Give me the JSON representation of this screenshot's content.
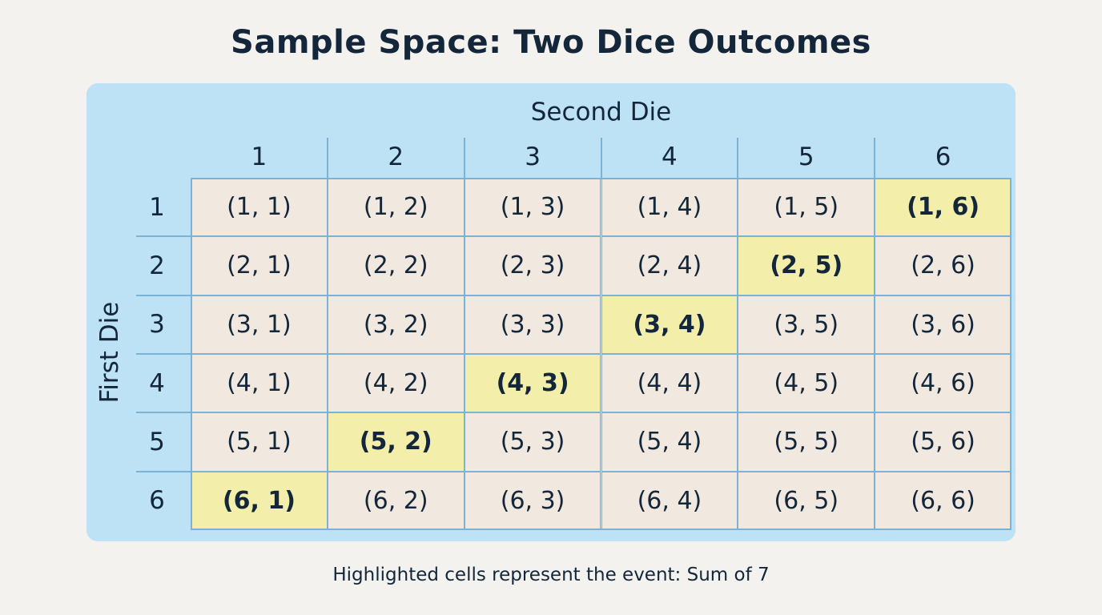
{
  "title": "Sample Space: Two Dice Outcomes",
  "column_axis_label": "Second Die",
  "row_axis_label": "First Die",
  "column_headers": [
    "1",
    "2",
    "3",
    "4",
    "5",
    "6"
  ],
  "row_headers": [
    "1",
    "2",
    "3",
    "4",
    "5",
    "6"
  ],
  "cells": [
    [
      {
        "text": "(1, 1)",
        "highlighted": false
      },
      {
        "text": "(1, 2)",
        "highlighted": false
      },
      {
        "text": "(1, 3)",
        "highlighted": false
      },
      {
        "text": "(1, 4)",
        "highlighted": false
      },
      {
        "text": "(1, 5)",
        "highlighted": false
      },
      {
        "text": "(1, 6)",
        "highlighted": true
      }
    ],
    [
      {
        "text": "(2, 1)",
        "highlighted": false
      },
      {
        "text": "(2, 2)",
        "highlighted": false
      },
      {
        "text": "(2, 3)",
        "highlighted": false
      },
      {
        "text": "(2, 4)",
        "highlighted": false
      },
      {
        "text": "(2, 5)",
        "highlighted": true
      },
      {
        "text": "(2, 6)",
        "highlighted": false
      }
    ],
    [
      {
        "text": "(3, 1)",
        "highlighted": false
      },
      {
        "text": "(3, 2)",
        "highlighted": false
      },
      {
        "text": "(3, 3)",
        "highlighted": false
      },
      {
        "text": "(3, 4)",
        "highlighted": true
      },
      {
        "text": "(3, 5)",
        "highlighted": false
      },
      {
        "text": "(3, 6)",
        "highlighted": false
      }
    ],
    [
      {
        "text": "(4, 1)",
        "highlighted": false
      },
      {
        "text": "(4, 2)",
        "highlighted": false
      },
      {
        "text": "(4, 3)",
        "highlighted": true
      },
      {
        "text": "(4, 4)",
        "highlighted": false
      },
      {
        "text": "(4, 5)",
        "highlighted": false
      },
      {
        "text": "(4, 6)",
        "highlighted": false
      }
    ],
    [
      {
        "text": "(5, 1)",
        "highlighted": false
      },
      {
        "text": "(5, 2)",
        "highlighted": true
      },
      {
        "text": "(5, 3)",
        "highlighted": false
      },
      {
        "text": "(5, 4)",
        "highlighted": false
      },
      {
        "text": "(5, 5)",
        "highlighted": false
      },
      {
        "text": "(5, 6)",
        "highlighted": false
      }
    ],
    [
      {
        "text": "(6, 1)",
        "highlighted": true
      },
      {
        "text": "(6, 2)",
        "highlighted": false
      },
      {
        "text": "(6, 3)",
        "highlighted": false
      },
      {
        "text": "(6, 4)",
        "highlighted": false
      },
      {
        "text": "(6, 5)",
        "highlighted": false
      },
      {
        "text": "(6, 6)",
        "highlighted": false
      }
    ]
  ],
  "caption": "Highlighted cells represent the event: Sum of 7",
  "colors": {
    "background": "#f3f2ee",
    "panel": "#bde2f5",
    "cell": "#f1e9df",
    "highlight": "#f3eeaa",
    "grid_line": "#7ab3d6",
    "text": "#13263a"
  }
}
